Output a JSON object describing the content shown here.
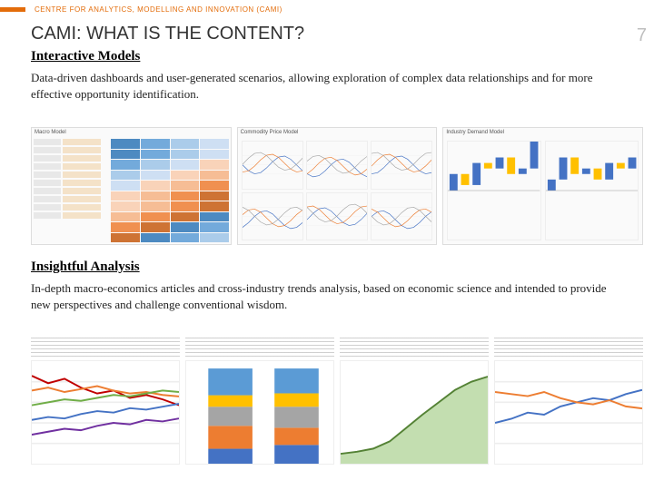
{
  "accent_color": "#e36c0a",
  "eyebrow": "CENTRE FOR ANALYTICS, MODELLING AND INNOVATION (CAMI)",
  "eyebrow_color": "#e36c0a",
  "title": "CAMI: WHAT IS THE CONTENT?",
  "page_number": "7",
  "sections": [
    {
      "heading": "Interactive Models",
      "body": "Data-driven dashboards and user-generated scenarios, allowing exploration of complex data relationships and for more effective opportunity identification."
    },
    {
      "heading": "Insightful Analysis",
      "body": "In-depth macro-economics articles and cross-industry trends analysis, based on economic science and intended to provide new perspectives and challenge conventional wisdom."
    }
  ],
  "dashboard_thumbs": [
    {
      "title": "Macro Model",
      "type": "tornado-dashboard",
      "side_rows": 10,
      "side_label_color": "#e8e8e8",
      "side_value_color": "#f4e2c8",
      "tornado_columns": 4,
      "tornado_rows": 10,
      "tornado_colors": [
        "#2e75b6",
        "#5b9bd5",
        "#9cc3e6",
        "#c5d9f1",
        "#f8cbad",
        "#f4b183",
        "#ed7d31",
        "#c55a11"
      ]
    },
    {
      "title": "Commodity Price Model",
      "type": "multi-line-grid",
      "panels": 6,
      "series_per_panel": 3,
      "line_colors": [
        "#4472c4",
        "#ed7d31",
        "#a5a5a5"
      ],
      "x_range": [
        2000,
        2020
      ],
      "background": "#ffffff"
    },
    {
      "title": "Industry Demand Model",
      "type": "waterfall-dual",
      "left": {
        "categories": 8,
        "values": [
          3,
          -2,
          4,
          -1,
          2,
          -3,
          1,
          5
        ],
        "pos_color": "#4472c4",
        "neg_color": "#ffc000"
      },
      "right": {
        "categories": 8,
        "values": [
          2,
          4,
          -3,
          1,
          -2,
          3,
          -1,
          2
        ],
        "pos_color": "#4472c4",
        "neg_color": "#ffc000"
      }
    }
  ],
  "article_thumbs": [
    {
      "chart_type": "multi-line",
      "series": [
        {
          "color": "#c00000",
          "points": [
            60,
            55,
            58,
            52,
            48,
            50,
            45,
            47,
            44,
            40
          ]
        },
        {
          "color": "#ed7d31",
          "points": [
            50,
            52,
            49,
            51,
            53,
            50,
            48,
            49,
            47,
            46
          ]
        },
        {
          "color": "#70ad47",
          "points": [
            40,
            42,
            44,
            43,
            45,
            47,
            46,
            48,
            50,
            49
          ]
        },
        {
          "color": "#4472c4",
          "points": [
            30,
            32,
            31,
            34,
            36,
            35,
            38,
            37,
            39,
            41
          ]
        },
        {
          "color": "#7030a0",
          "points": [
            20,
            22,
            24,
            23,
            26,
            28,
            27,
            30,
            29,
            31
          ]
        }
      ],
      "y_range": [
        0,
        70
      ]
    },
    {
      "chart_type": "stacked-bar",
      "categories": 2,
      "stack_colors": [
        "#4472c4",
        "#ed7d31",
        "#a5a5a5",
        "#ffc000",
        "#5b9bd5"
      ],
      "values": [
        [
          8,
          12,
          10,
          6,
          14
        ],
        [
          10,
          9,
          11,
          7,
          13
        ]
      ]
    },
    {
      "chart_type": "area",
      "area_color": "#a9d08e",
      "line_color": "#548235",
      "points": [
        10,
        12,
        15,
        22,
        35,
        48,
        60,
        72,
        80,
        85
      ],
      "y_range": [
        0,
        100
      ]
    },
    {
      "chart_type": "line-pair",
      "series": [
        {
          "color": "#4472c4",
          "points": [
            20,
            22,
            25,
            24,
            28,
            30,
            32,
            31,
            34,
            36
          ]
        },
        {
          "color": "#ed7d31",
          "points": [
            35,
            34,
            33,
            35,
            32,
            30,
            29,
            31,
            28,
            27
          ]
        }
      ],
      "y_range": [
        0,
        50
      ]
    }
  ]
}
